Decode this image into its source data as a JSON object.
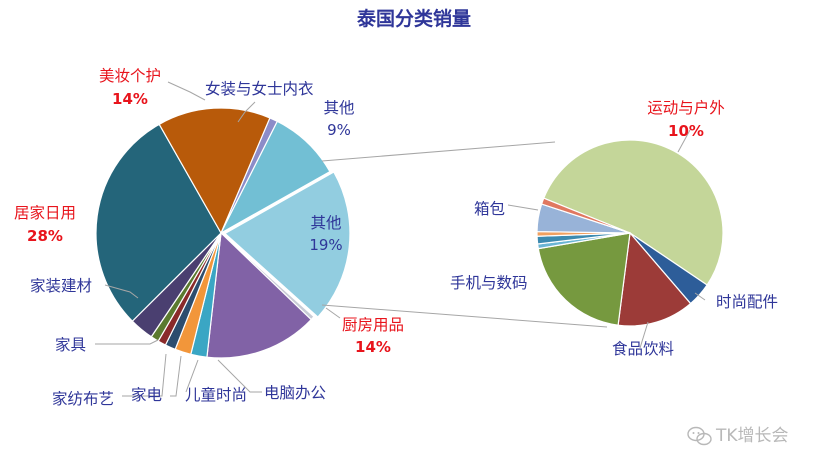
{
  "chart_data": {
    "type": "pie",
    "title": "泰国分类销量",
    "main_pie": {
      "slices": [
        {
          "label": "女装与女士内衣",
          "value": 1,
          "color": "#8c8cc8"
        },
        {
          "label": "其他",
          "value": 9,
          "pct": "9%",
          "color": "#72bfd4"
        },
        {
          "label": "其他",
          "value": 19,
          "pct": "19%",
          "color": "#92cde0",
          "exploded": true
        },
        {
          "label": "",
          "value": 0.5,
          "color": "#c8ccd6"
        },
        {
          "label": "厨房用品",
          "value": 14,
          "pct": "14%",
          "color": "#8162a6",
          "highlight": true
        },
        {
          "label": "电脑办公",
          "value": 2,
          "color": "#3aa6c4"
        },
        {
          "label": "儿童时尚",
          "value": 2,
          "color": "#f2963a"
        },
        {
          "label": "家电",
          "value": 1.3,
          "color": "#2d4d6e"
        },
        {
          "label": "家纺布艺",
          "value": 1,
          "color": "#8a2a2a"
        },
        {
          "label": "家具",
          "value": 1,
          "color": "#5b7a2f"
        },
        {
          "label": "家装建材",
          "value": 3,
          "color": "#4a3f70"
        },
        {
          "label": "居家日用",
          "value": 28,
          "pct": "28%",
          "color": "#24657a",
          "highlight": true
        },
        {
          "label": "美妆个护",
          "value": 14,
          "pct": "14%",
          "color": "#b85a0a",
          "highlight": true
        }
      ]
    },
    "sub_pie": {
      "slices": [
        {
          "label": "运动与户外",
          "value": 10,
          "pct": "10%",
          "color": "#c4d699",
          "highlight": true
        },
        {
          "label": "时尚配件",
          "value": 0.8,
          "color": "#2d5d99"
        },
        {
          "label": "食品饮料",
          "value": 2.5,
          "color": "#9c3b38"
        },
        {
          "label": "手机与数码",
          "value": 3.8,
          "color": "#76993f"
        },
        {
          "label": "",
          "value": 0.15,
          "color": "#6bb5d4"
        },
        {
          "label": "",
          "value": 0.25,
          "color": "#3c8ab0"
        },
        {
          "label": "",
          "value": 0.15,
          "color": "#f0a060"
        },
        {
          "label": "箱包",
          "value": 0.9,
          "color": "#98b3d8"
        },
        {
          "label": "",
          "value": 0.2,
          "color": "#e07860"
        }
      ]
    }
  },
  "watermark": "TK增长会",
  "icon": "wechat-icon"
}
